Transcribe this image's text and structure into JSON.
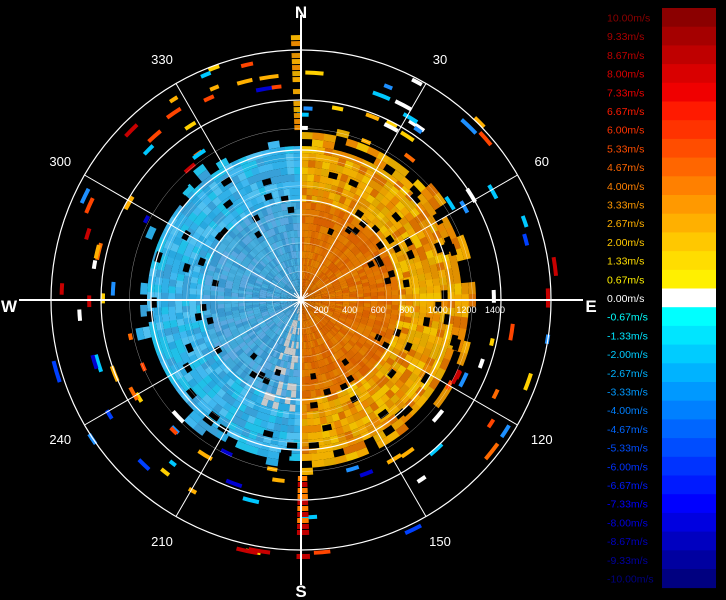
{
  "chart_data": {
    "type": "polar-radial-velocity",
    "cardinals": {
      "N": "N",
      "E": "E",
      "S": "S",
      "W": "W"
    },
    "bearing_labels": [
      "30",
      "60",
      "120",
      "150",
      "210",
      "240",
      "300",
      "330"
    ],
    "bearings": [
      30,
      60,
      120,
      150,
      210,
      240,
      300,
      330
    ],
    "range_labels": [
      "200",
      "400",
      "600",
      "800",
      "1000",
      "1200",
      "1400"
    ],
    "range_values": [
      200,
      400,
      600,
      800,
      1000,
      1200,
      1400
    ],
    "range_max": 1750,
    "legend": {
      "entries": [
        {
          "label": "10.00m/s",
          "color": "#8b0000"
        },
        {
          "label": "9.33m/s",
          "color": "#a50000"
        },
        {
          "label": "8.67m/s",
          "color": "#bf0000"
        },
        {
          "label": "8.00m/s",
          "color": "#d90000"
        },
        {
          "label": "7.33m/s",
          "color": "#f00000"
        },
        {
          "label": "6.67m/s",
          "color": "#ff1a00"
        },
        {
          "label": "6.00m/s",
          "color": "#ff3300"
        },
        {
          "label": "5.33m/s",
          "color": "#ff4d00"
        },
        {
          "label": "4.67m/s",
          "color": "#ff6600"
        },
        {
          "label": "4.00m/s",
          "color": "#ff8000"
        },
        {
          "label": "3.33m/s",
          "color": "#ff9900"
        },
        {
          "label": "2.67m/s",
          "color": "#ffb000"
        },
        {
          "label": "2.00m/s",
          "color": "#ffc800"
        },
        {
          "label": "1.33m/s",
          "color": "#ffdd00"
        },
        {
          "label": "0.67m/s",
          "color": "#fff000"
        },
        {
          "label": "0.00m/s",
          "color": "#ffffff"
        },
        {
          "label": "-0.67m/s",
          "color": "#00ffff"
        },
        {
          "label": "-1.33m/s",
          "color": "#00e5ff"
        },
        {
          "label": "-2.00m/s",
          "color": "#00ccff"
        },
        {
          "label": "-2.67m/s",
          "color": "#00b3ff"
        },
        {
          "label": "-3.33m/s",
          "color": "#0099ff"
        },
        {
          "label": "-4.00m/s",
          "color": "#0080ff"
        },
        {
          "label": "-4.67m/s",
          "color": "#0066ff"
        },
        {
          "label": "-5.33m/s",
          "color": "#004dff"
        },
        {
          "label": "-6.00m/s",
          "color": "#0033ff"
        },
        {
          "label": "-6.67m/s",
          "color": "#001aff"
        },
        {
          "label": "-7.33m/s",
          "color": "#0000ff"
        },
        {
          "label": "-8.00m/s",
          "color": "#0000e0"
        },
        {
          "label": "-8.67m/s",
          "color": "#0000c0"
        },
        {
          "label": "-9.33m/s",
          "color": "#0000a0"
        },
        {
          "label": "-10.00m/s",
          "color": "#000080"
        }
      ]
    }
  }
}
